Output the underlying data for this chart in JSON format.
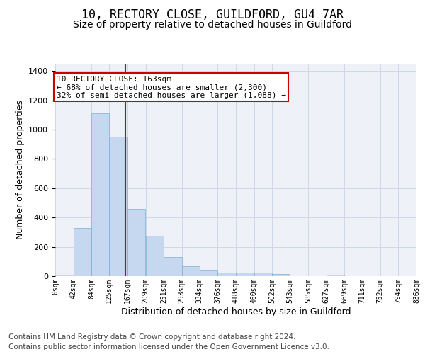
{
  "title1": "10, RECTORY CLOSE, GUILDFORD, GU4 7AR",
  "title2": "Size of property relative to detached houses in Guildford",
  "xlabel": "Distribution of detached houses by size in Guildford",
  "ylabel": "Number of detached properties",
  "bar_values": [
    10,
    330,
    1110,
    950,
    460,
    275,
    130,
    70,
    40,
    25,
    25,
    25,
    15,
    0,
    0,
    10,
    0,
    0,
    0,
    0
  ],
  "bin_edges": [
    0,
    42,
    84,
    125,
    167,
    209,
    251,
    293,
    334,
    376,
    418,
    460,
    502,
    543,
    585,
    627,
    669,
    711,
    752,
    794,
    836
  ],
  "tick_labels": [
    "0sqm",
    "42sqm",
    "84sqm",
    "125sqm",
    "167sqm",
    "209sqm",
    "251sqm",
    "293sqm",
    "334sqm",
    "376sqm",
    "418sqm",
    "460sqm",
    "502sqm",
    "543sqm",
    "585sqm",
    "627sqm",
    "669sqm",
    "711sqm",
    "752sqm",
    "794sqm",
    "836sqm"
  ],
  "bar_color": "#c5d8f0",
  "bar_edge_color": "#7bafd4",
  "vline_x": 163,
  "vline_color": "#cc0000",
  "annotation_line1": "10 RECTORY CLOSE: 163sqm",
  "annotation_line2": "← 68% of detached houses are smaller (2,300)",
  "annotation_line3": "32% of semi-detached houses are larger (1,088) →",
  "annotation_box_color": "#cc0000",
  "ylim": [
    0,
    1450
  ],
  "yticks": [
    0,
    200,
    400,
    600,
    800,
    1000,
    1200,
    1400
  ],
  "grid_color": "#d0d8e8",
  "bg_color": "#eef2f8",
  "footer_line1": "Contains HM Land Registry data © Crown copyright and database right 2024.",
  "footer_line2": "Contains public sector information licensed under the Open Government Licence v3.0.",
  "title1_fontsize": 12,
  "title2_fontsize": 10,
  "xlabel_fontsize": 9,
  "ylabel_fontsize": 9,
  "footer_fontsize": 7.5,
  "tick_fontsize": 7,
  "annot_fontsize": 8
}
